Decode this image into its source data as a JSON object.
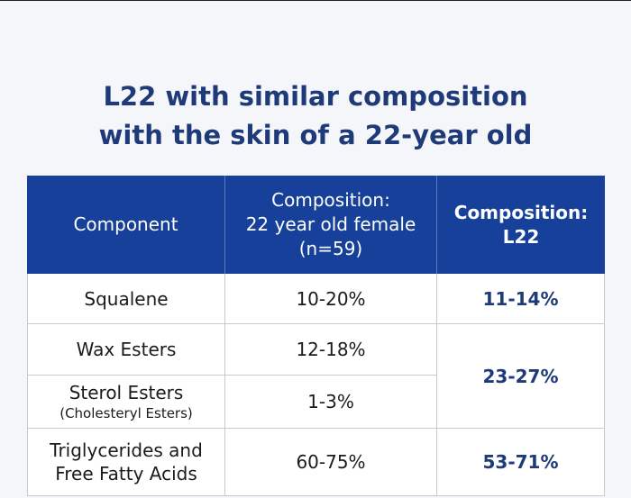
{
  "title": {
    "line1": "L22 with similar composition",
    "line2": "with the skin of a 22-year old"
  },
  "table": {
    "headers": {
      "component": "Component",
      "female_line1": "Composition:",
      "female_line2": "22 year old female",
      "female_line3": "(n=59)",
      "l22_line1": "Composition:",
      "l22_line2": "L22"
    },
    "rows": {
      "squalene": {
        "name": "Squalene",
        "female": "10-20%",
        "l22": "11-14%"
      },
      "wax_esters": {
        "name": "Wax Esters",
        "female": "12-18%"
      },
      "sterol_esters": {
        "name": "Sterol Esters",
        "subname": "(Cholesteryl Esters)",
        "female": "1-3%"
      },
      "esters_combined_l22": "23-27%",
      "triglycerides": {
        "name_line1": "Triglycerides and",
        "name_line2": "Free Fatty Acids",
        "female": "60-75%",
        "l22": "53-71%"
      }
    }
  },
  "colors": {
    "header_bg": "#16409a",
    "title_text": "#1e3a78",
    "accent_text": "#1e3a78",
    "page_bg": "#f5f6f9"
  }
}
